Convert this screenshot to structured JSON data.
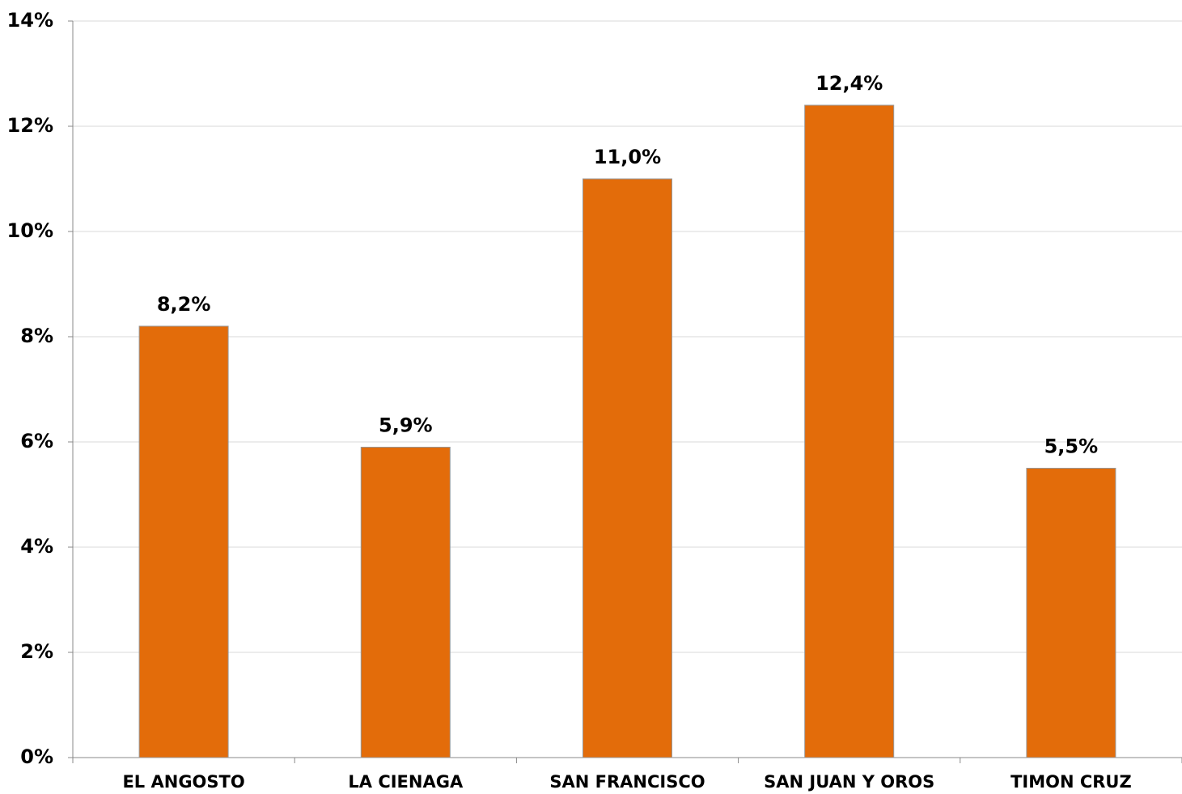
{
  "chart_data": {
    "type": "bar",
    "categories": [
      "EL ANGOSTO",
      "LA CIENAGA",
      "SAN FRANCISCO",
      "SAN JUAN Y OROS",
      "TIMON CRUZ"
    ],
    "values": [
      8.2,
      5.9,
      11.0,
      12.4,
      5.5
    ],
    "value_labels": [
      "8,2%",
      "5,9%",
      "11,0%",
      "12,4%",
      "5,5%"
    ],
    "color": "#e36c0a",
    "ylim": [
      0,
      14
    ],
    "yticks": [
      {
        "value": 0,
        "label": "0%"
      },
      {
        "value": 2,
        "label": "2%"
      },
      {
        "value": 4,
        "label": "4%"
      },
      {
        "value": 6,
        "label": "6%"
      },
      {
        "value": 8,
        "label": "8%"
      },
      {
        "value": 10,
        "label": "10%"
      },
      {
        "value": 12,
        "label": "12%"
      },
      {
        "value": 14,
        "label": "14%"
      }
    ],
    "grid": true
  }
}
